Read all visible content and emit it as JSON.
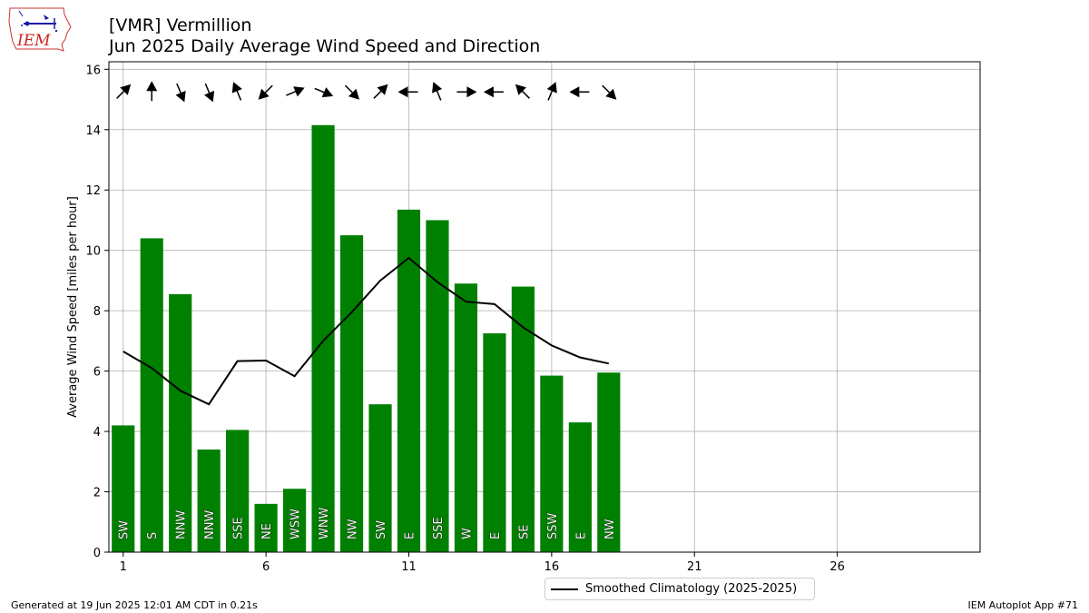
{
  "header": {
    "title_line1": "[VMR] Vermillion",
    "title_line2": "Jun 2025 Daily Average Wind Speed and Direction",
    "logo_text": "IEM"
  },
  "footer": {
    "left": "Generated at 19 Jun 2025 12:01 AM CDT in 0.21s",
    "right": "IEM Autoplot App #71"
  },
  "legend": {
    "label": "Smoothed Climatology (2025-2025)"
  },
  "colors": {
    "bar": "#008000",
    "line": "#000000",
    "grid": "#b0b0b0",
    "arrow": "#000000"
  },
  "chart_data": {
    "type": "bar",
    "ylabel": "Average Wind Speed [miles per hour]",
    "xlim": [
      0.5,
      31
    ],
    "ylim": [
      0,
      16.25
    ],
    "xticks": [
      1,
      6,
      11,
      16,
      21,
      26
    ],
    "yticks": [
      0,
      2,
      4,
      6,
      8,
      10,
      12,
      14,
      16
    ],
    "grid": true,
    "legend_position": "below-center",
    "days": [
      1,
      2,
      3,
      4,
      5,
      6,
      7,
      8,
      9,
      10,
      11,
      12,
      13,
      14,
      15,
      16,
      17,
      18
    ],
    "values": [
      4.2,
      10.4,
      8.55,
      3.4,
      4.05,
      1.6,
      2.1,
      14.15,
      10.5,
      4.9,
      11.35,
      11.0,
      8.9,
      7.25,
      8.8,
      5.85,
      4.3,
      5.95
    ],
    "directions": [
      "SW",
      "S",
      "NNW",
      "NNW",
      "SSE",
      "NE",
      "WSW",
      "WNW",
      "NW",
      "SW",
      "E",
      "SSE",
      "W",
      "E",
      "SE",
      "SSW",
      "E",
      "NW"
    ],
    "arrow_toward_deg": [
      45,
      0,
      157.5,
      157.5,
      337.5,
      225,
      67.5,
      112.5,
      135,
      45,
      270,
      337.5,
      90,
      270,
      315,
      22.5,
      270,
      135
    ],
    "series": [
      {
        "name": "Smoothed Climatology (2025-2025)",
        "type": "line",
        "x": [
          1,
          2,
          3,
          4,
          5,
          6,
          7,
          8,
          9,
          10,
          11,
          12,
          13,
          14,
          15,
          16,
          17,
          18
        ],
        "values": [
          6.65,
          6.1,
          5.35,
          4.9,
          6.33,
          6.35,
          5.83,
          7.0,
          7.95,
          9.0,
          9.75,
          8.95,
          8.3,
          8.22,
          7.45,
          6.85,
          6.45,
          6.25
        ]
      }
    ]
  }
}
